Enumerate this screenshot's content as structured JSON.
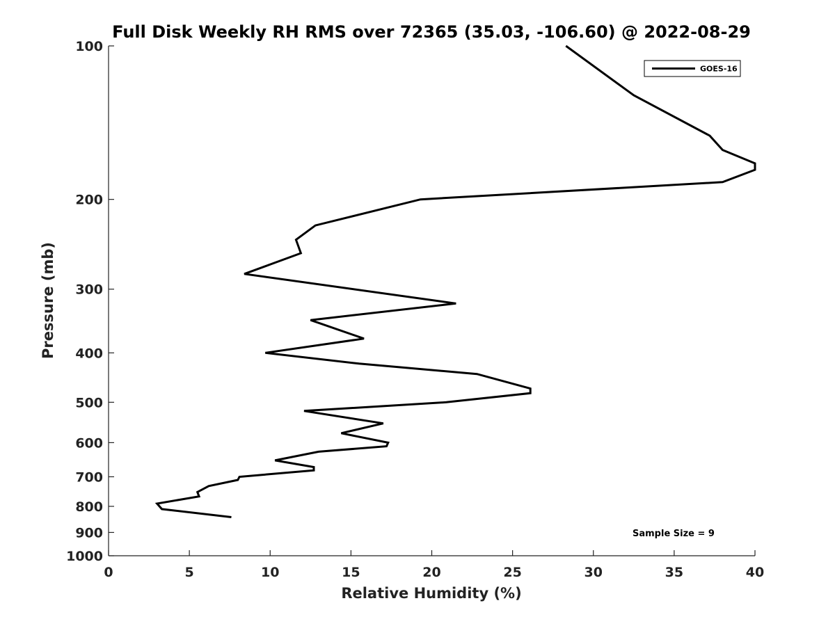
{
  "chart_data": {
    "type": "line",
    "title": "Full Disk Weekly RH RMS over 72365 (35.03, -106.60) @ 2022-08-29",
    "xlabel": "Relative Humidity (%)",
    "ylabel": "Pressure (mb)",
    "xlim": [
      0,
      40
    ],
    "ylim": [
      100,
      1000
    ],
    "y_scale": "log",
    "y_inverted": true,
    "x_ticks": [
      "0",
      "5",
      "10",
      "15",
      "20",
      "25",
      "30",
      "35",
      "40"
    ],
    "y_ticks": [
      {
        "value": 100,
        "label": "100"
      },
      {
        "value": 200,
        "label": "200"
      },
      {
        "value": 300,
        "label": "300"
      },
      {
        "value": 400,
        "label": "400"
      },
      {
        "value": 500,
        "label": "500"
      },
      {
        "value": 600,
        "label": "600"
      },
      {
        "value": 700,
        "label": "700"
      },
      {
        "value": 800,
        "label": "800"
      },
      {
        "value": 900,
        "label": "900"
      },
      {
        "value": 1000,
        "label": "1000"
      }
    ],
    "grid": false,
    "legend_position": "top-right",
    "annotation": "Sample Size = 9",
    "series": [
      {
        "name": "GOES-16",
        "color": "#000000",
        "x": [
          28.3,
          32.5,
          37.2,
          38.0,
          40.0,
          40.0,
          38.0,
          19.3,
          12.8,
          11.6,
          11.9,
          8.4,
          21.5,
          12.5,
          15.8,
          9.7,
          15.5,
          22.8,
          26.1,
          26.1,
          20.9,
          12.1,
          17.0,
          14.4,
          17.3,
          17.2,
          13.0,
          10.3,
          12.7,
          12.7,
          8.1,
          8.0,
          6.2,
          5.5,
          5.6,
          3.0,
          3.3,
          7.6
        ],
        "y": [
          100,
          125,
          150,
          160,
          170,
          175,
          185,
          200,
          225,
          240,
          255,
          280,
          320,
          345,
          375,
          400,
          420,
          440,
          470,
          480,
          500,
          520,
          550,
          575,
          600,
          610,
          625,
          650,
          670,
          680,
          700,
          710,
          730,
          750,
          765,
          790,
          810,
          840
        ]
      }
    ]
  }
}
